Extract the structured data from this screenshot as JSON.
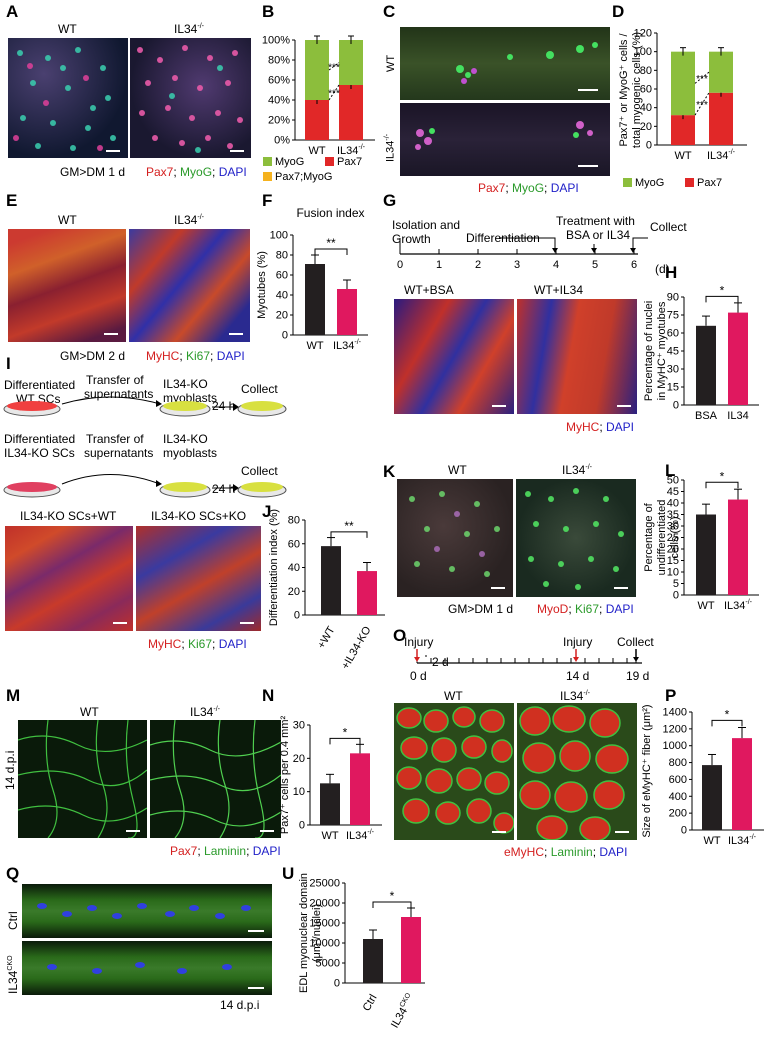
{
  "panels": [
    "A",
    "B",
    "C",
    "D",
    "E",
    "F",
    "G",
    "H",
    "I",
    "J",
    "K",
    "L",
    "M",
    "N",
    "O",
    "P",
    "Q",
    "U"
  ],
  "colors": {
    "red": "#e12828",
    "green": "#8cbe3c",
    "orange": "#f5b21e",
    "black": "#231f20",
    "magenta": "#e0185f",
    "stain_red": "#d42020",
    "stain_green": "#2a9a2a",
    "stain_blue": "#2020c8"
  },
  "labels": {
    "wt": "WT",
    "il34": "IL34",
    "il34_sup": "-/-",
    "ctrl": "Ctrl",
    "il34cko": "IL34",
    "cko_sup": "CKO",
    "gm_dm_1d": "GM>DM 1 d",
    "gm_dm_2d": "GM>DM 2 d",
    "dpi14": "14 d.p.i",
    "dpi14b": "14 d.p.i",
    "wt_bsa": "WT+BSA",
    "wt_il34": "WT+IL34",
    "ko_wt": "IL34-KO SCs+WT",
    "ko_ko": "IL34-KO SCs+KO"
  },
  "stains": {
    "A": [
      "Pax7",
      "; ",
      "MyoG",
      "; ",
      "DAPI"
    ],
    "C": [
      "Pax7",
      "; ",
      "MyoG",
      "; ",
      "DAPI"
    ],
    "E": [
      "MyHC",
      "; ",
      "Ki67",
      "; ",
      "DAPI"
    ],
    "G": [
      "MyHC",
      "; ",
      "DAPI"
    ],
    "I": [
      "MyHC",
      "; ",
      "Ki67",
      "; ",
      "DAPI"
    ],
    "K": [
      "MyoD",
      "; ",
      "Ki67",
      "; ",
      "DAPI"
    ],
    "M": [
      "Pax7",
      "; ",
      "Laminin",
      "; ",
      "DAPI"
    ],
    "O": [
      "eMyHC",
      "; ",
      "Laminin",
      "; ",
      "DAPI"
    ]
  },
  "timelineG": {
    "ticks": [
      "0",
      "1",
      "2",
      "3",
      "4",
      "5",
      "6"
    ],
    "unit": "(d)",
    "events": [
      "Isolation and",
      "Growth",
      "Differentiation",
      "Treatment with",
      "BSA or IL34",
      "Collect"
    ]
  },
  "timelineO": {
    "events": [
      "Injury",
      "Injury",
      "Collect"
    ],
    "ticks": [
      "0 d",
      "2 d",
      "14 d",
      "19 d"
    ]
  },
  "schematicI": {
    "row1": [
      "Differentiated",
      "WT SCs",
      "Transfer of",
      "supernatants",
      "IL34-KO",
      "myoblasts",
      "24 h",
      "Collect"
    ],
    "row2": [
      "Differentiated",
      "IL34-KO SCs",
      "Transfer of",
      "supernatants",
      "IL34-KO",
      "myoblasts",
      "24 h",
      "Collect"
    ]
  },
  "chart_data": [
    {
      "panel": "B",
      "type": "bar",
      "stacked": true,
      "categories": [
        "WT",
        "IL34-/-"
      ],
      "series": [
        {
          "name": "Pax7",
          "values": [
            40,
            55
          ]
        },
        {
          "name": "MyoG",
          "values": [
            60,
            45
          ]
        },
        {
          "name": "Pax7;MyoG",
          "values": [
            0,
            0
          ]
        }
      ],
      "ylim": [
        0,
        100
      ],
      "yticks": [
        "0%",
        "20%",
        "40%",
        "60%",
        "80%",
        "100%"
      ],
      "annotations": [
        "***",
        "***"
      ]
    },
    {
      "panel": "D",
      "type": "bar",
      "stacked": true,
      "categories": [
        "WT",
        "IL34-/-"
      ],
      "series": [
        {
          "name": "Pax7",
          "values": [
            32,
            56
          ]
        },
        {
          "name": "MyoG",
          "values": [
            68,
            44
          ]
        }
      ],
      "ylim": [
        0,
        120
      ],
      "yticks": [
        "0",
        "20",
        "40",
        "60",
        "80",
        "100",
        "120"
      ],
      "ylabel": "Pax7⁺ or MyoG⁺ cells / total myogenic cells (%)",
      "annotations": [
        "***",
        "***"
      ]
    },
    {
      "panel": "F",
      "type": "bar",
      "title": "Fusion index",
      "categories": [
        "WT",
        "IL34-/-"
      ],
      "values": [
        71,
        46
      ],
      "ylim": [
        0,
        100
      ],
      "yticks": [
        "0",
        "20",
        "40",
        "60",
        "80",
        "100"
      ],
      "ylabel": "Myotubes (%)",
      "annotations": [
        "**"
      ]
    },
    {
      "panel": "H",
      "type": "bar",
      "categories": [
        "BSA",
        "IL34"
      ],
      "values": [
        66,
        77
      ],
      "ylim": [
        0,
        90
      ],
      "yticks": [
        "0",
        "15",
        "30",
        "45",
        "60",
        "75",
        "90"
      ],
      "ylabel": "Percentage of nuclei in MyHC⁺ myotubes",
      "annotations": [
        "*"
      ]
    },
    {
      "panel": "J",
      "type": "bar",
      "categories": [
        "+WT",
        "+IL34-KO"
      ],
      "values": [
        58,
        37
      ],
      "ylim": [
        0,
        80
      ],
      "yticks": [
        "0",
        "20",
        "40",
        "60",
        "80"
      ],
      "ylabel": "Differentiation index (%)",
      "annotations": [
        "**"
      ]
    },
    {
      "panel": "L",
      "type": "bar",
      "categories": [
        "WT",
        "IL34-/-"
      ],
      "values": [
        35,
        41.5
      ],
      "ylim": [
        0,
        50
      ],
      "yticks": [
        "0",
        "5",
        "10",
        "15",
        "20",
        "25",
        "30",
        "35",
        "40",
        "45",
        "50"
      ],
      "ylabel": "Percentage of undifferentiated cells (%)",
      "annotations": [
        "*"
      ]
    },
    {
      "panel": "N",
      "type": "bar",
      "categories": [
        "WT",
        "IL34-/-"
      ],
      "values": [
        12.5,
        21.5
      ],
      "ylim": [
        0,
        30
      ],
      "yticks": [
        "0",
        "10",
        "20",
        "30"
      ],
      "ylabel": "Pax7⁺ cells per 0.4 mm²",
      "annotations": [
        "*"
      ]
    },
    {
      "panel": "P",
      "type": "bar",
      "categories": [
        "WT",
        "IL34-/-"
      ],
      "values": [
        770,
        1090
      ],
      "ylim": [
        0,
        1400
      ],
      "yticks": [
        "0",
        "200",
        "400",
        "600",
        "800",
        "1000",
        "1200",
        "1400"
      ],
      "ylabel": "Size of eMyHC⁺ fiber (μm²)",
      "annotations": [
        "*"
      ]
    },
    {
      "panel": "U",
      "type": "bar",
      "categories": [
        "Ctrl",
        "IL34CKO"
      ],
      "values": [
        11000,
        16500
      ],
      "ylim": [
        0,
        25000
      ],
      "yticks": [
        "0",
        "5000",
        "10000",
        "15000",
        "20000",
        "25000"
      ],
      "ylabel": "EDL myonuclear domain (μm³/nuclei)",
      "annotations": [
        "*"
      ]
    }
  ]
}
